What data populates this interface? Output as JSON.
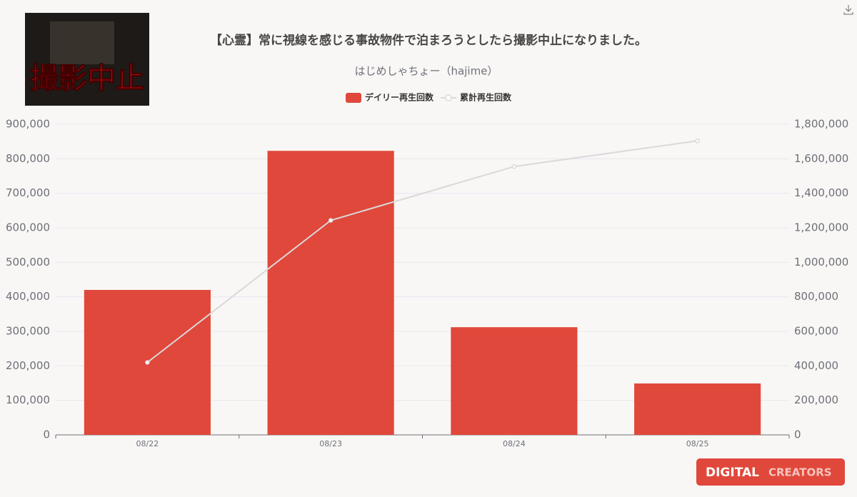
{
  "thumbnail_text": "撮影中止",
  "brand": {
    "first": "DIGITAL",
    "second": "CREATORS"
  },
  "chart_data": {
    "type": "bar",
    "title": "【心霊】常に視線を感じる事故物件で泊まろうとしたら撮影中止になりました。",
    "subtitle": "はじめしゃちょー（hajime）",
    "categories": [
      "08/22",
      "08/23",
      "08/24",
      "08/25"
    ],
    "series": [
      {
        "name": "デイリー再生回数",
        "type": "bar",
        "color": "#e0483b",
        "values": [
          420000,
          823000,
          312000,
          149000
        ]
      },
      {
        "name": "累計再生回数",
        "type": "line",
        "axis": "y2",
        "color": "#d9d9d9",
        "values": [
          420000,
          1243000,
          1555000,
          1704000
        ]
      }
    ],
    "ylim": [
      0,
      900000
    ],
    "yticks": [
      0,
      {
        "value": 100000,
        "label": "100,000"
      },
      {
        "value": 200000,
        "label": "200,000"
      },
      {
        "value": 300000,
        "label": "300,000"
      },
      {
        "value": 400000,
        "label": "400,000"
      },
      {
        "value": 500000,
        "label": "500,000"
      },
      {
        "value": 600000,
        "label": "600,000"
      },
      {
        "value": 700000,
        "label": "700,000"
      },
      {
        "value": 800000,
        "label": "800,000"
      },
      {
        "value": 900000,
        "label": "900,000"
      }
    ],
    "y2lim": [
      0,
      1800000
    ],
    "y2ticks": [
      0,
      {
        "value": 200000,
        "label": "200,000"
      },
      {
        "value": 400000,
        "label": "400,000"
      },
      {
        "value": 600000,
        "label": "600,000"
      },
      {
        "value": 800000,
        "label": "800,000"
      },
      {
        "value": 1000000,
        "label": "1,000,000"
      },
      {
        "value": 1200000,
        "label": "1,200,000"
      },
      {
        "value": 1400000,
        "label": "1,400,000"
      },
      {
        "value": 1600000,
        "label": "1,600,000"
      },
      {
        "value": 1800000,
        "label": "1,800,000"
      }
    ],
    "grid": true,
    "legend": "top"
  }
}
